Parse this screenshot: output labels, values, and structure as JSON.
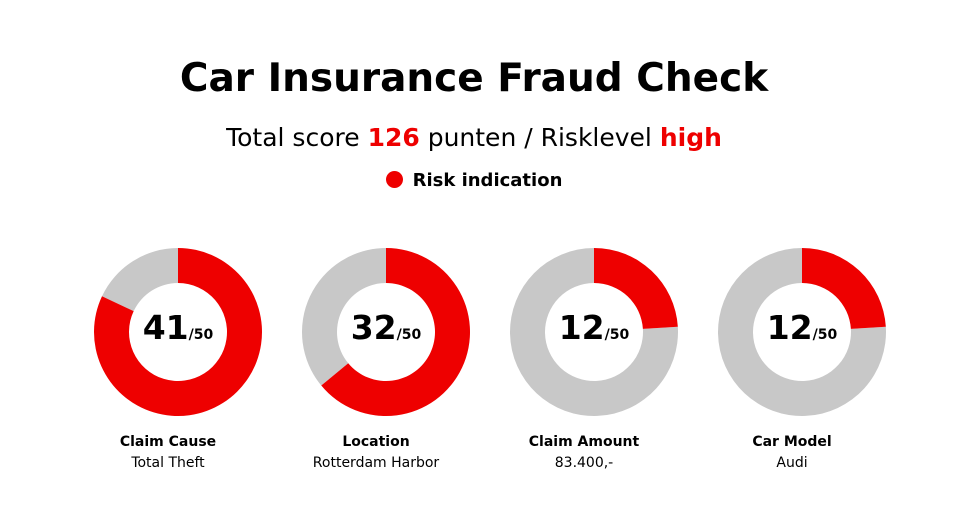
{
  "header": {
    "title": "Car Insurance Fraud Check",
    "subtitle_prefix": "Total score ",
    "total_score": "126",
    "subtitle_middle": " punten / Risklevel ",
    "risk_level": "high"
  },
  "legend": {
    "label": "Risk indication"
  },
  "colors": {
    "risk": "#ee0000",
    "remainder": "#c8c8c8",
    "text": "#000000"
  },
  "chart_data": [
    {
      "type": "pie",
      "label": "Claim Cause",
      "sublabel": "Total Theft",
      "value": 41,
      "max": 50,
      "value_label": "41",
      "max_label": "/50"
    },
    {
      "type": "pie",
      "label": "Location",
      "sublabel": "Rotterdam Harbor",
      "value": 32,
      "max": 50,
      "value_label": "32",
      "max_label": "/50"
    },
    {
      "type": "pie",
      "label": "Claim Amount",
      "sublabel": "83.400,-",
      "value": 12,
      "max": 50,
      "value_label": "12",
      "max_label": "/50"
    },
    {
      "type": "pie",
      "label": "Car Model",
      "sublabel": "Audi",
      "value": 12,
      "max": 50,
      "value_label": "12",
      "max_label": "/50"
    }
  ]
}
